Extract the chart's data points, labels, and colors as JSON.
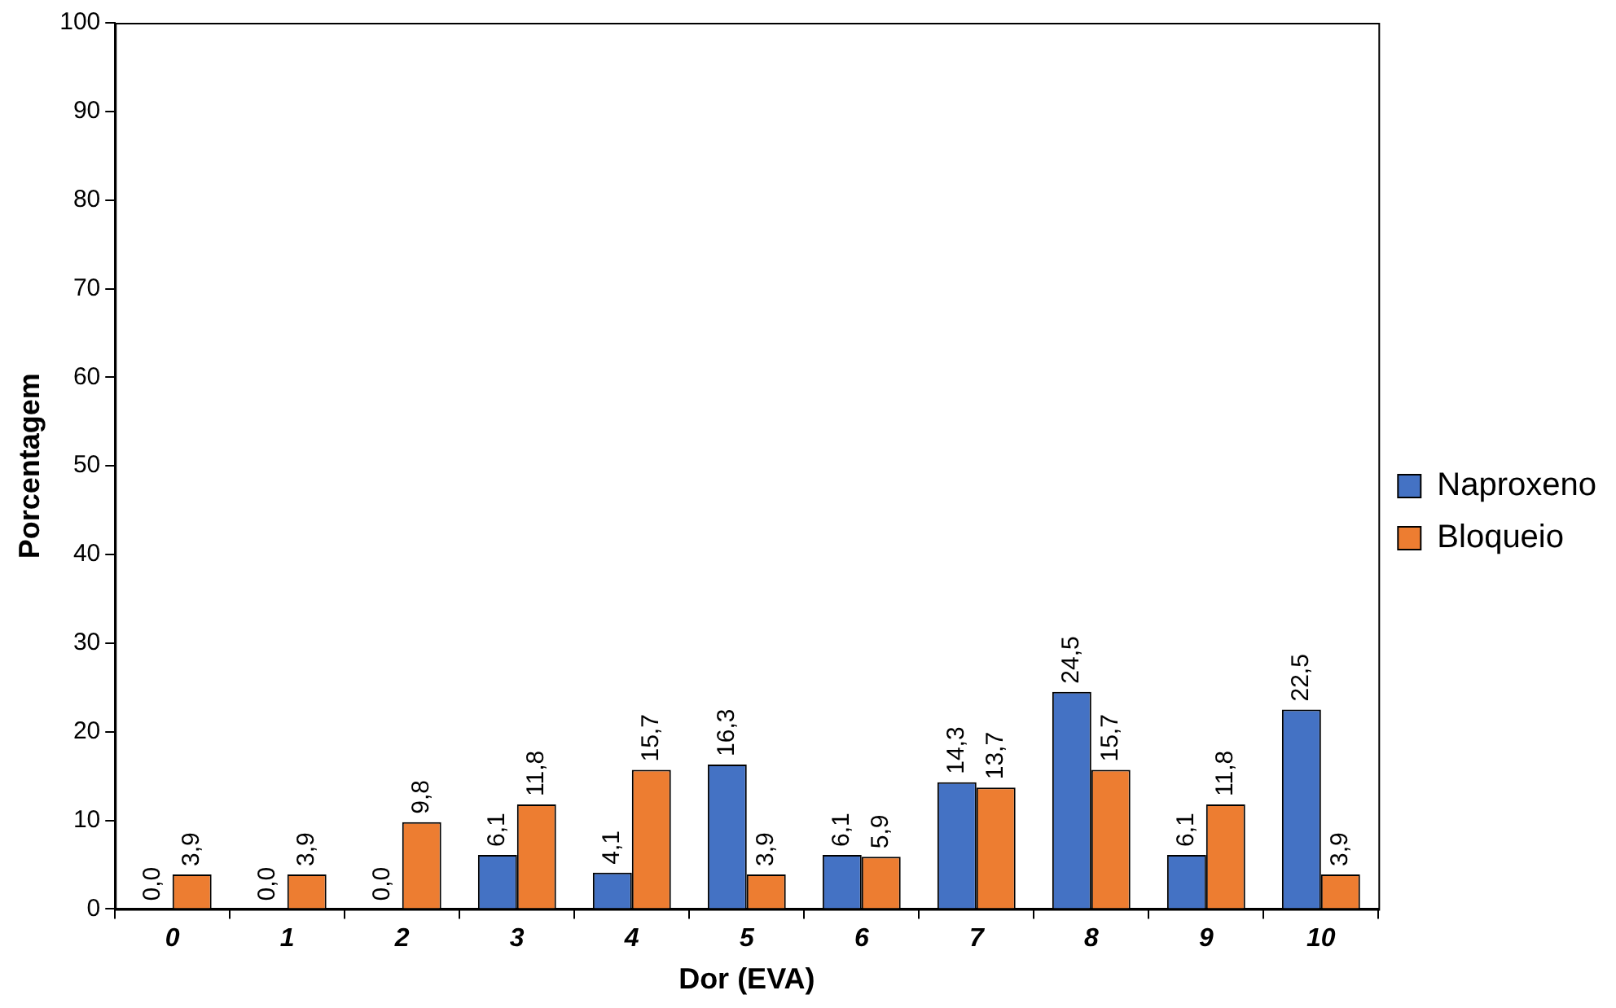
{
  "chart_data": {
    "type": "bar",
    "xlabel": "Dor (EVA)",
    "ylabel": "Porcentagem",
    "categories": [
      "0",
      "1",
      "2",
      "3",
      "4",
      "5",
      "6",
      "7",
      "8",
      "9",
      "10"
    ],
    "series": [
      {
        "name": "Naproxeno",
        "color": "#4472c4",
        "values": [
          0.0,
          0.0,
          0.0,
          6.1,
          4.1,
          16.3,
          6.1,
          14.3,
          24.5,
          6.1,
          22.5
        ],
        "value_labels": [
          "0,0",
          "0,0",
          "0,0",
          "6,1",
          "4,1",
          "16,3",
          "6,1",
          "14,3",
          "24,5",
          "6,1",
          "22,5"
        ]
      },
      {
        "name": "Bloqueio",
        "color": "#ed7d31",
        "values": [
          3.9,
          3.9,
          9.8,
          11.8,
          15.7,
          3.9,
          5.9,
          13.7,
          15.7,
          11.8,
          3.9
        ],
        "value_labels": [
          "3,9",
          "3,9",
          "9,8",
          "11,8",
          "15,7",
          "3,9",
          "5,9",
          "13,7",
          "15,7",
          "11,8",
          "3,9"
        ]
      }
    ],
    "ylim": [
      0,
      100
    ],
    "yticks": [
      0,
      10,
      20,
      30,
      40,
      50,
      60,
      70,
      80,
      90,
      100
    ],
    "legend": "right"
  }
}
